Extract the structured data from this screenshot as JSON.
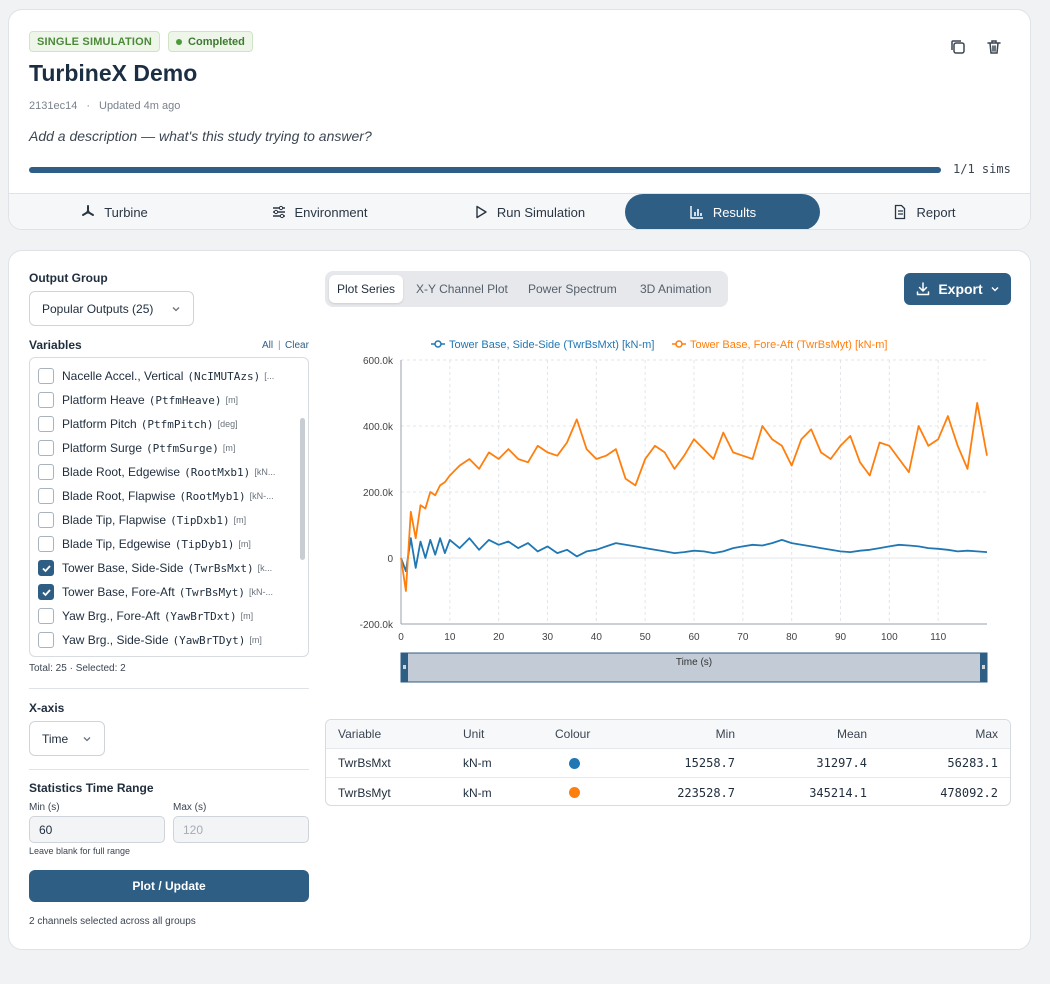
{
  "header": {
    "type_badge": "SINGLE SIMULATION",
    "status_badge": "Completed",
    "title": "TurbineX Demo",
    "id": "2131ec14",
    "separator": "·",
    "updated": "Updated 4m ago",
    "description_placeholder": "Add a description — what's this study trying to answer?",
    "progress_text": "1/1 sims",
    "progress_fraction": 1.0
  },
  "tabs": [
    {
      "label": "Turbine",
      "icon": "turbine-icon"
    },
    {
      "label": "Environment",
      "icon": "sliders-icon"
    },
    {
      "label": "Run Simulation",
      "icon": "play-icon"
    },
    {
      "label": "Results",
      "icon": "bar-chart-icon"
    },
    {
      "label": "Report",
      "icon": "document-icon"
    }
  ],
  "sidebar": {
    "output_group_label": "Output Group",
    "output_group_value": "Popular Outputs (25)",
    "variables_label": "Variables",
    "all_link": "All",
    "link_separator": "|",
    "clear_link": "Clear",
    "variables": [
      {
        "name": "Nacelle Accel., Vertical",
        "code": "(NcIMUTAzs)",
        "unit": "[...",
        "checked": false
      },
      {
        "name": "Platform Heave",
        "code": "(PtfmHeave)",
        "unit": "[m]",
        "checked": false
      },
      {
        "name": "Platform Pitch",
        "code": "(PtfmPitch)",
        "unit": "[deg]",
        "checked": false
      },
      {
        "name": "Platform Surge",
        "code": "(PtfmSurge)",
        "unit": "[m]",
        "checked": false
      },
      {
        "name": "Blade Root, Edgewise",
        "code": "(RootMxb1)",
        "unit": "[kN...",
        "checked": false
      },
      {
        "name": "Blade Root, Flapwise",
        "code": "(RootMyb1)",
        "unit": "[kN-...",
        "checked": false
      },
      {
        "name": "Blade Tip, Flapwise",
        "code": "(TipDxb1)",
        "unit": "[m]",
        "checked": false
      },
      {
        "name": "Blade Tip, Edgewise",
        "code": "(TipDyb1)",
        "unit": "[m]",
        "checked": false
      },
      {
        "name": "Tower Base, Side-Side",
        "code": "(TwrBsMxt)",
        "unit": "[k...",
        "checked": true
      },
      {
        "name": "Tower Base, Fore-Aft",
        "code": "(TwrBsMyt)",
        "unit": "[kN-...",
        "checked": true
      },
      {
        "name": "Yaw Brg., Fore-Aft",
        "code": "(YawBrTDxt)",
        "unit": "[m]",
        "checked": false
      },
      {
        "name": "Yaw Brg., Side-Side",
        "code": "(YawBrTDyt)",
        "unit": "[m]",
        "checked": false
      }
    ],
    "totals": "Total: 25 · Selected: 2",
    "xaxis_label": "X-axis",
    "xaxis_value": "Time",
    "stats_range_label": "Statistics Time Range",
    "min_label": "Min (s)",
    "max_label": "Max (s)",
    "min_value": "60",
    "max_placeholder": "120",
    "range_hint": "Leave blank for full range",
    "plot_button": "Plot / Update",
    "footer": "2 channels selected across all groups"
  },
  "plot_tabs": [
    "Plot Series",
    "X-Y Channel Plot",
    "Power Spectrum",
    "3D Animation"
  ],
  "active_plot_tab": "Plot Series",
  "export_label": "Export",
  "colors": {
    "accent": "#2f5e85",
    "series_blue": "#1f77b4",
    "series_orange": "#ff7f0e",
    "success": "#4c9a3a"
  },
  "chart_data": {
    "type": "line",
    "title": "",
    "xlabel": "Time (s)",
    "ylabel": "",
    "xlim": [
      0,
      120
    ],
    "ylim": [
      -200000,
      600000
    ],
    "xticks": [
      "0",
      "10",
      "20",
      "30",
      "40",
      "50",
      "60",
      "70",
      "80",
      "90",
      "100",
      "110"
    ],
    "yticks": [
      "-200.0k",
      "0",
      "200.0k",
      "400.0k",
      "600.0k"
    ],
    "grid": true,
    "legend_position": "top",
    "x": [
      0,
      1,
      2,
      3,
      4,
      5,
      6,
      7,
      8,
      9,
      10,
      12,
      14,
      16,
      18,
      20,
      22,
      24,
      26,
      28,
      30,
      32,
      34,
      36,
      38,
      40,
      42,
      44,
      46,
      48,
      50,
      52,
      54,
      56,
      58,
      60,
      62,
      64,
      66,
      68,
      70,
      72,
      74,
      76,
      78,
      80,
      82,
      84,
      86,
      88,
      90,
      92,
      94,
      96,
      98,
      100,
      102,
      104,
      106,
      108,
      110,
      112,
      114,
      116,
      118,
      120
    ],
    "series": [
      {
        "name": "Tower Base, Side-Side (TwrBsMxt) [kN-m]",
        "color": "#1f77b4",
        "values": [
          0,
          -40000,
          60000,
          -30000,
          50000,
          0,
          55000,
          10000,
          60000,
          15000,
          55000,
          30000,
          60000,
          25000,
          55000,
          40000,
          50000,
          30000,
          45000,
          20000,
          35000,
          15000,
          25000,
          5000,
          20000,
          25000,
          35000,
          45000,
          40000,
          35000,
          30000,
          25000,
          20000,
          15000,
          18000,
          22000,
          20000,
          15000,
          20000,
          30000,
          35000,
          40000,
          38000,
          45000,
          55000,
          45000,
          40000,
          35000,
          30000,
          25000,
          20000,
          18000,
          22000,
          25000,
          30000,
          35000,
          40000,
          38000,
          35000,
          30000,
          28000,
          25000,
          20000,
          22000,
          20000,
          18000
        ]
      },
      {
        "name": "Tower Base, Fore-Aft (TwrBsMyt) [kN-m]",
        "color": "#ff7f0e",
        "values": [
          0,
          -100000,
          140000,
          60000,
          160000,
          150000,
          200000,
          190000,
          220000,
          230000,
          250000,
          280000,
          300000,
          270000,
          320000,
          300000,
          330000,
          300000,
          290000,
          340000,
          320000,
          310000,
          350000,
          420000,
          330000,
          300000,
          310000,
          330000,
          240000,
          220000,
          300000,
          340000,
          320000,
          270000,
          310000,
          360000,
          330000,
          300000,
          380000,
          320000,
          310000,
          300000,
          400000,
          360000,
          340000,
          280000,
          360000,
          390000,
          320000,
          300000,
          340000,
          370000,
          290000,
          250000,
          350000,
          340000,
          300000,
          260000,
          400000,
          340000,
          360000,
          430000,
          340000,
          270000,
          470000,
          310000
        ]
      }
    ]
  },
  "stats_table": {
    "headers": [
      "Variable",
      "Unit",
      "Colour",
      "Min",
      "Mean",
      "Max"
    ],
    "rows": [
      {
        "variable": "TwrBsMxt",
        "unit": "kN-m",
        "color": "#1f77b4",
        "min": "15258.7",
        "mean": "31297.4",
        "max": "56283.1"
      },
      {
        "variable": "TwrBsMyt",
        "unit": "kN-m",
        "color": "#ff7f0e",
        "min": "223528.7",
        "mean": "345214.1",
        "max": "478092.2"
      }
    ]
  }
}
